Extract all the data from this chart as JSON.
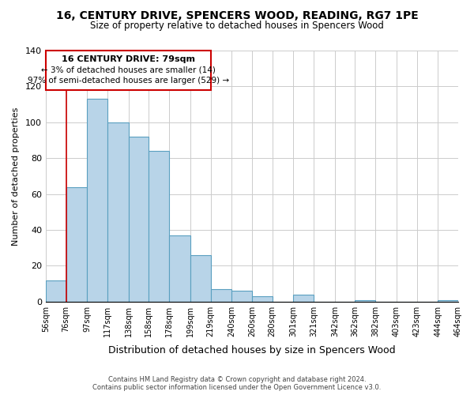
{
  "title": "16, CENTURY DRIVE, SPENCERS WOOD, READING, RG7 1PE",
  "subtitle": "Size of property relative to detached houses in Spencers Wood",
  "xlabel": "Distribution of detached houses by size in Spencers Wood",
  "ylabel": "Number of detached properties",
  "bar_color": "#b8d4e8",
  "bar_edge_color": "#5a9fc0",
  "annotation_title": "16 CENTURY DRIVE: 79sqm",
  "annotation_line1": "← 3% of detached houses are smaller (14)",
  "annotation_line2": "97% of semi-detached houses are larger (529) →",
  "vline_color": "#cc0000",
  "bins": [
    56,
    76,
    97,
    117,
    138,
    158,
    178,
    199,
    219,
    240,
    260,
    280,
    301,
    321,
    342,
    362,
    382,
    403,
    423,
    444,
    464
  ],
  "bin_labels": [
    "56sqm",
    "76sqm",
    "97sqm",
    "117sqm",
    "138sqm",
    "158sqm",
    "178sqm",
    "199sqm",
    "219sqm",
    "240sqm",
    "260sqm",
    "280sqm",
    "301sqm",
    "321sqm",
    "342sqm",
    "362sqm",
    "382sqm",
    "403sqm",
    "423sqm",
    "444sqm",
    "464sqm"
  ],
  "counts": [
    12,
    64,
    113,
    100,
    92,
    84,
    37,
    26,
    7,
    6,
    3,
    0,
    4,
    0,
    0,
    1,
    0,
    0,
    0,
    1
  ],
  "ylim": [
    0,
    140
  ],
  "yticks": [
    0,
    20,
    40,
    60,
    80,
    100,
    120,
    140
  ],
  "footer_line1": "Contains HM Land Registry data © Crown copyright and database right 2024.",
  "footer_line2": "Contains public sector information licensed under the Open Government Licence v3.0.",
  "background_color": "#ffffff",
  "grid_color": "#cccccc"
}
